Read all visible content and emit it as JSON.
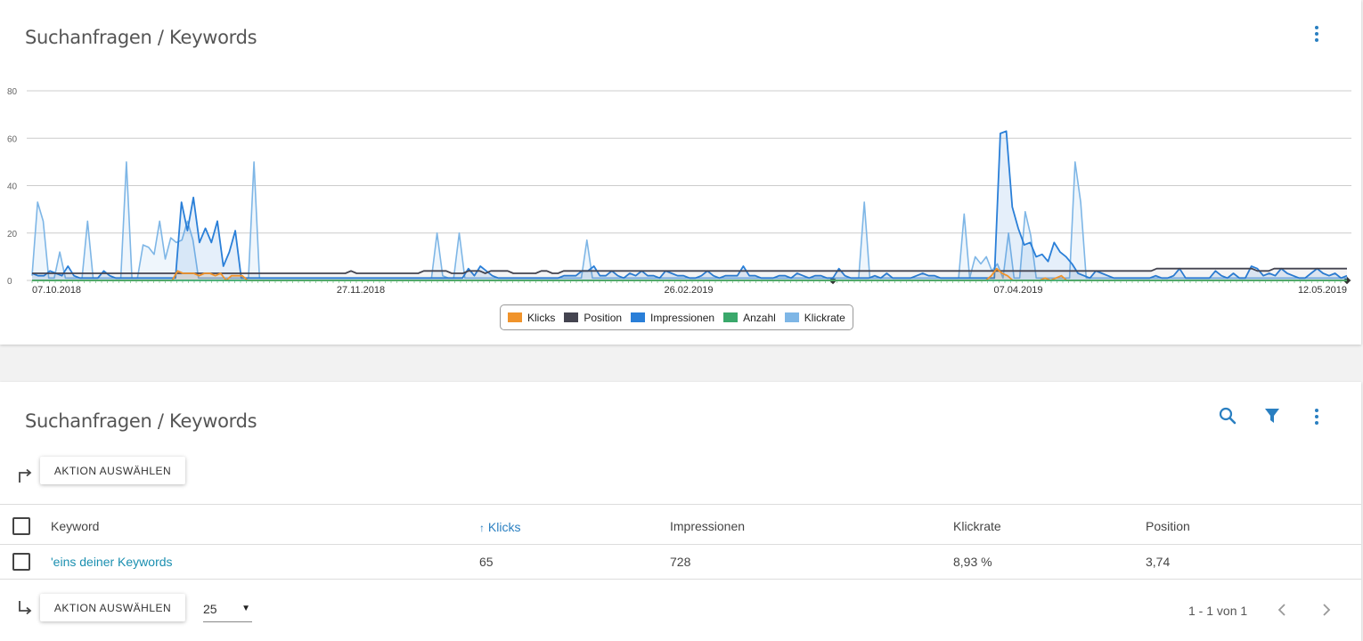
{
  "chart_card": {
    "title": "Suchanfragen / Keywords",
    "menu_icon": "kebab-menu-icon"
  },
  "chart_data": {
    "type": "area",
    "y_ticks": [
      "80",
      "60",
      "40",
      "20",
      "0"
    ],
    "ylim": [
      0,
      80
    ],
    "x_tick_labels": [
      "07.10.2018",
      "27.11.2018",
      "26.02.2019",
      "07.04.2019",
      "12.05.2019"
    ],
    "grid": true,
    "legend_position": "bottom-center",
    "series": [
      {
        "name": "Klicks",
        "color": "#f0932b",
        "values": [
          0,
          0,
          0,
          0,
          0,
          0,
          0,
          0,
          0,
          0,
          0,
          0,
          0,
          0,
          0,
          0,
          0,
          0,
          0,
          0,
          0,
          0,
          0,
          0,
          0,
          0,
          0,
          4,
          3,
          3,
          3,
          2,
          3,
          3,
          2,
          3,
          0,
          2,
          2,
          2,
          0,
          0,
          0,
          0,
          0,
          0,
          0,
          0,
          0,
          0,
          0,
          0,
          0,
          0,
          0,
          0,
          0,
          0,
          0,
          0,
          0,
          0,
          0,
          0,
          0,
          0,
          0,
          0,
          0,
          0,
          0,
          0,
          0,
          0,
          0,
          0,
          0,
          0,
          0,
          0,
          0,
          0,
          0,
          0,
          0,
          0,
          0,
          0,
          0,
          0,
          0,
          0,
          0,
          0,
          0,
          0,
          0,
          0,
          0,
          0,
          0,
          0,
          0,
          0,
          0,
          0,
          0,
          0,
          0,
          0,
          0,
          0,
          0,
          0,
          0,
          0,
          0,
          0,
          0,
          0,
          0,
          0,
          0,
          0,
          0,
          0,
          0,
          0,
          0,
          0,
          0,
          0,
          0,
          0,
          0,
          0,
          0,
          0,
          0,
          0,
          0,
          0,
          0,
          0,
          0,
          0,
          0,
          0,
          0,
          0,
          0,
          0,
          0,
          0,
          0,
          0,
          0,
          0,
          0,
          0,
          0,
          0,
          0,
          0,
          0,
          0,
          0,
          0,
          0,
          0,
          0,
          0,
          0,
          0,
          0,
          0,
          0,
          0,
          2,
          5,
          3,
          2,
          0,
          0,
          0,
          0,
          0,
          0,
          1,
          0,
          1,
          2,
          0,
          0,
          0,
          0,
          0,
          0,
          0,
          0,
          0,
          0,
          0,
          0,
          0,
          0,
          0,
          0,
          0,
          0,
          0,
          0,
          0,
          0,
          0,
          0,
          0,
          0,
          0,
          0,
          0,
          0,
          0,
          0,
          0,
          0,
          0,
          0,
          0,
          0,
          0,
          0,
          0,
          0,
          0,
          0,
          0,
          0,
          0,
          0,
          0,
          0,
          0,
          0,
          0
        ]
      },
      {
        "name": "Position",
        "color": "#444450",
        "values": [
          3,
          3,
          3,
          3,
          3,
          3,
          3,
          3,
          3,
          3,
          3,
          3,
          3,
          3,
          3,
          3,
          3,
          3,
          3,
          3,
          3,
          3,
          3,
          3,
          3,
          3,
          3,
          3,
          3,
          3,
          3,
          3,
          3,
          3,
          3,
          3,
          3,
          3,
          3,
          3,
          3,
          3,
          3,
          3,
          3,
          3,
          3,
          3,
          3,
          3,
          3,
          3,
          3,
          3,
          3,
          3,
          3,
          4,
          3,
          3,
          3,
          3,
          3,
          3,
          3,
          3,
          3,
          3,
          3,
          3,
          4,
          4,
          4,
          4,
          4,
          3,
          3,
          3,
          4,
          4,
          4,
          3,
          4,
          4,
          4,
          4,
          3,
          3,
          3,
          3,
          3,
          4,
          4,
          3,
          3,
          4,
          4,
          4,
          4,
          4,
          4,
          4,
          4,
          4,
          4,
          4,
          4,
          4,
          4,
          4,
          4,
          4,
          4,
          4,
          4,
          4,
          4,
          4,
          4,
          4,
          4,
          4,
          4,
          4,
          4,
          4,
          4,
          4,
          4,
          4,
          4,
          4,
          4,
          4,
          4,
          4,
          4,
          4,
          4,
          4,
          4,
          4,
          4,
          4,
          4,
          4,
          4,
          4,
          4,
          4,
          4,
          4,
          4,
          4,
          4,
          4,
          4,
          4,
          4,
          4,
          4,
          4,
          4,
          4,
          4,
          4,
          4,
          4,
          4,
          4,
          4,
          4,
          4,
          4,
          4,
          4,
          4,
          4,
          4,
          4,
          4,
          4,
          4,
          4,
          4,
          4,
          4,
          4,
          4,
          4,
          4,
          4,
          4,
          4,
          4,
          4,
          4,
          4,
          4,
          4,
          4,
          5,
          5,
          5,
          5,
          5,
          5,
          5,
          5,
          5,
          5,
          5,
          5,
          5,
          5,
          5,
          5,
          5,
          5,
          4,
          4,
          4,
          5,
          5,
          5,
          5,
          5,
          5,
          5,
          5,
          5,
          5,
          5,
          5,
          5,
          5
        ]
      },
      {
        "name": "Impressionen",
        "color": "#2a7fd8",
        "values": [
          3,
          2,
          2,
          4,
          3,
          2,
          6,
          2,
          1,
          1,
          1,
          1,
          4,
          2,
          1,
          1,
          1,
          1,
          1,
          1,
          1,
          1,
          1,
          1,
          1,
          33,
          21,
          35,
          16,
          22,
          16,
          25,
          6,
          12,
          21,
          1,
          1,
          1,
          1,
          1,
          1,
          1,
          1,
          1,
          1,
          1,
          1,
          1,
          1,
          1,
          1,
          1,
          1,
          1,
          1,
          1,
          1,
          1,
          1,
          1,
          1,
          1,
          1,
          1,
          1,
          1,
          1,
          1,
          1,
          1,
          1,
          1,
          1,
          5,
          2,
          6,
          4,
          2,
          1,
          1,
          1,
          1,
          1,
          1,
          1,
          1,
          1,
          1,
          1,
          2,
          2,
          2,
          4,
          4,
          6,
          2,
          2,
          4,
          2,
          1,
          3,
          2,
          4,
          2,
          2,
          1,
          4,
          3,
          2,
          2,
          1,
          1,
          2,
          4,
          2,
          1,
          2,
          2,
          2,
          6,
          2,
          2,
          1,
          1,
          1,
          2,
          2,
          1,
          3,
          2,
          1,
          2,
          2,
          1,
          1,
          5,
          2,
          1,
          1,
          1,
          1,
          2,
          1,
          3,
          1,
          1,
          1,
          1,
          2,
          3,
          2,
          2,
          1,
          1,
          1,
          1,
          1,
          1,
          1,
          1,
          1,
          1,
          62,
          63,
          31,
          22,
          15,
          16,
          10,
          11,
          8,
          16,
          12,
          10,
          7,
          3,
          2,
          1,
          4,
          3,
          2,
          1,
          1,
          1,
          1,
          1,
          1,
          1,
          2,
          1,
          1,
          2,
          5,
          1,
          1,
          1,
          1,
          1,
          4,
          2,
          1,
          3,
          1,
          1,
          6,
          5,
          2,
          3,
          2,
          5,
          3,
          2,
          1,
          1,
          3,
          5,
          3,
          2,
          3,
          1,
          2
        ]
      },
      {
        "name": "Anzahl",
        "color": "#3aa86b",
        "values": [
          0,
          0,
          0,
          0,
          0,
          0,
          0,
          0,
          0,
          0,
          0,
          0,
          0,
          0,
          0,
          0,
          0,
          0,
          0,
          0,
          0,
          0,
          0,
          0,
          0,
          0,
          0,
          0,
          0,
          0,
          0,
          0,
          0,
          0,
          0,
          0,
          0,
          0,
          0,
          0,
          0,
          0,
          0,
          0,
          0,
          0,
          0,
          0,
          0,
          0,
          0,
          0,
          0,
          0,
          0,
          0,
          0,
          0,
          0,
          0,
          0,
          0,
          0,
          0,
          0,
          0,
          0,
          0,
          0,
          0,
          0,
          0,
          0,
          0,
          0,
          0,
          0,
          0,
          0,
          0,
          0,
          0,
          0,
          0,
          0,
          0,
          0,
          0,
          0,
          0,
          0,
          0,
          0,
          0,
          0,
          0,
          0,
          0,
          0,
          0,
          0,
          0,
          0,
          0,
          0,
          0,
          0,
          0,
          0,
          0,
          0,
          0,
          0,
          0,
          0,
          0,
          0,
          0,
          0,
          0,
          0,
          0,
          0,
          0,
          0,
          0,
          0,
          0,
          0,
          0,
          0,
          0,
          0,
          0,
          0,
          0,
          0,
          0,
          0,
          0,
          0,
          0,
          0,
          0,
          0,
          0,
          0,
          0,
          0,
          0,
          0,
          0,
          0,
          0,
          0,
          0,
          0,
          0,
          0,
          0,
          0,
          0,
          0,
          0,
          0,
          0,
          0,
          0,
          0,
          0,
          0,
          0,
          0,
          0,
          0,
          0,
          0,
          0,
          0,
          0,
          0,
          0,
          0,
          0,
          0,
          0,
          0,
          0,
          0,
          0,
          0,
          0,
          0,
          0,
          0,
          0,
          0,
          0,
          0,
          0,
          0,
          0,
          0,
          0,
          0,
          0,
          0,
          0,
          0,
          0,
          0,
          0,
          0,
          0,
          0,
          0,
          0,
          0,
          0,
          0,
          0,
          0,
          0,
          0,
          0,
          0
        ]
      },
      {
        "name": "Klickrate",
        "color": "#7eb6e6",
        "values": [
          2,
          33,
          25,
          1,
          1,
          12,
          1,
          1,
          1,
          1,
          25,
          1,
          1,
          1,
          1,
          1,
          1,
          50,
          1,
          1,
          15,
          14,
          11,
          25,
          9,
          18,
          16,
          17,
          25,
          17,
          1,
          1,
          1,
          1,
          1,
          1,
          1,
          1,
          1,
          1,
          50,
          1,
          1,
          1,
          1,
          1,
          1,
          1,
          1,
          1,
          1,
          1,
          1,
          1,
          1,
          1,
          1,
          1,
          1,
          1,
          1,
          1,
          1,
          1,
          1,
          1,
          1,
          1,
          1,
          1,
          1,
          1,
          1,
          20,
          2,
          1,
          1,
          20,
          1,
          1,
          1,
          1,
          1,
          1,
          1,
          1,
          1,
          1,
          1,
          1,
          1,
          1,
          1,
          1,
          1,
          1,
          1,
          1,
          1,
          1,
          17,
          1,
          1,
          1,
          1,
          1,
          1,
          1,
          1,
          1,
          1,
          1,
          1,
          1,
          1,
          1,
          1,
          1,
          1,
          1,
          1,
          1,
          1,
          1,
          1,
          1,
          1,
          1,
          1,
          1,
          1,
          1,
          1,
          1,
          1,
          1,
          1,
          1,
          1,
          1,
          1,
          1,
          1,
          1,
          1,
          1,
          1,
          1,
          1,
          1,
          33,
          1,
          1,
          1,
          1,
          1,
          1,
          1,
          1,
          1,
          1,
          1,
          1,
          1,
          1,
          1,
          1,
          1,
          28,
          1,
          10,
          7,
          10,
          4,
          7,
          1,
          20,
          1,
          1,
          29,
          19,
          1,
          1,
          1,
          1,
          1,
          1,
          1,
          50,
          33,
          1,
          1,
          1,
          1,
          1,
          1,
          1,
          1,
          1,
          1,
          1,
          1,
          1,
          1,
          1,
          1,
          1,
          1,
          1,
          1,
          1,
          1,
          1,
          1,
          1,
          1,
          1,
          1,
          1,
          1,
          1,
          1,
          1,
          1,
          1,
          1,
          1,
          1,
          1,
          1,
          1,
          1,
          1,
          1,
          1,
          1,
          1,
          1
        ]
      }
    ]
  },
  "table_card": {
    "title": "Suchanfragen / Keywords",
    "search_icon": "search-icon",
    "filter_icon": "filter-icon",
    "menu_icon": "kebab-menu-icon",
    "action_top_label": "AKTION AUSWÄHLEN",
    "action_bottom_label": "AKTION AUSWÄHLEN",
    "columns": {
      "keyword": "Keyword",
      "klicks": "Klicks",
      "impressionen": "Impressionen",
      "klickrate": "Klickrate",
      "position": "Position"
    },
    "sort_arrow": "↑",
    "rows": [
      {
        "keyword": "'eins deiner Keywords",
        "klicks": "65",
        "impressionen": "728",
        "klickrate": "8,93 %",
        "position": "3,74"
      }
    ],
    "page_size": "25",
    "pager_text": "1 - 1 von 1"
  }
}
